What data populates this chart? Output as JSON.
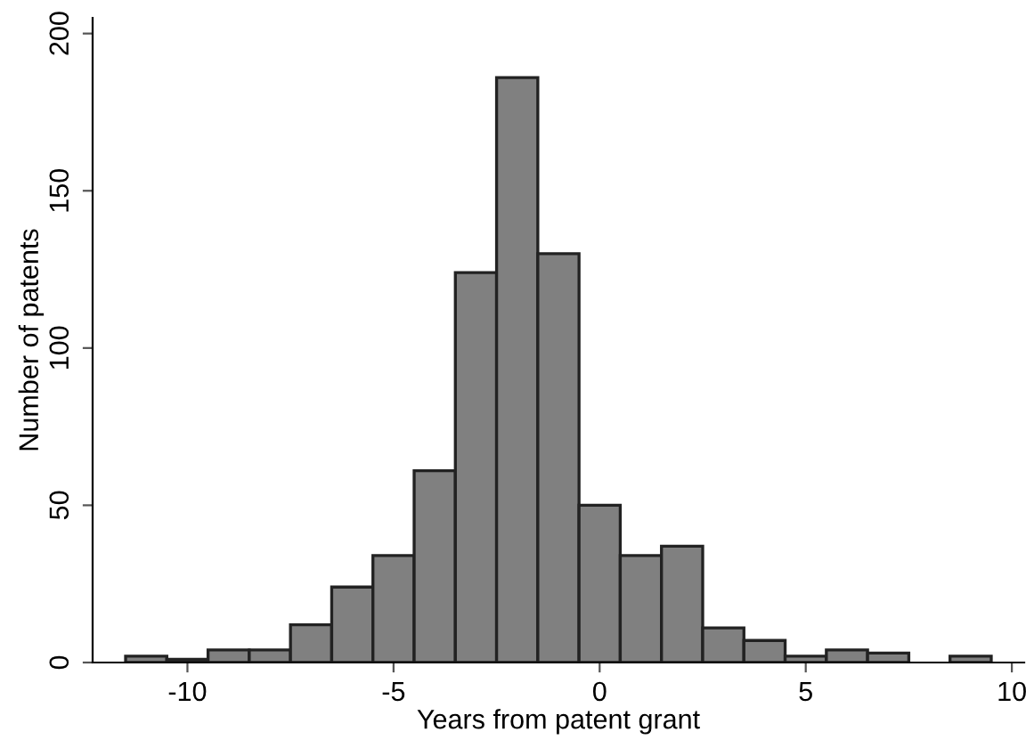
{
  "chart_data": {
    "type": "histogram",
    "xlabel": "Years from patent grant",
    "ylabel": "Number of patents",
    "bins": [
      -11.5,
      -10.5,
      -9.5,
      -8.5,
      -7.5,
      -6.5,
      -5.5,
      -4.5,
      -3.5,
      -2.5,
      -1.5,
      -0.5,
      0.5,
      1.5,
      2.5,
      3.5,
      4.5,
      5.5,
      6.5,
      7.5,
      8.5,
      9.5
    ],
    "values": [
      2,
      1,
      4,
      4,
      12,
      24,
      34,
      61,
      124,
      186,
      130,
      50,
      34,
      37,
      11,
      7,
      2,
      4,
      3,
      0,
      2
    ],
    "color": "#808080",
    "xlim": [
      -12.3,
      10.3
    ],
    "xticks": [
      -10,
      -5,
      0,
      5,
      10
    ],
    "ylim": [
      0,
      205
    ],
    "yticks": [
      0,
      50,
      100,
      150,
      200
    ],
    "grid": false
  }
}
